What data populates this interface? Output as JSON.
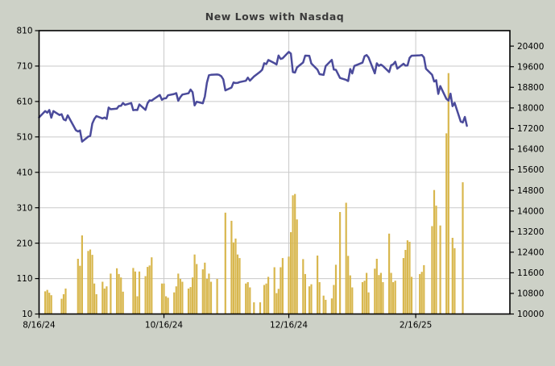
{
  "title": "New Lows with Nasdaq",
  "colors": {
    "background": "#CDD1C7",
    "plot_background": "#FFFFFF",
    "grid": "#C9C9C9",
    "frame": "#000000",
    "bar": "#D8B74E",
    "line": "#4B4B9B",
    "title_text": "#3B3B3B",
    "tick_text": "#000000"
  },
  "chart_data": {
    "type": "bar+line",
    "title": "New Lows with Nasdaq",
    "grid": true,
    "legend": "none",
    "x_axis": {
      "start_date": "2024-08-16",
      "days_total": 230,
      "ticks": [
        {
          "label": "8/16/24",
          "date": "2024-08-16"
        },
        {
          "label": "10/16/24",
          "date": "2024-10-16"
        },
        {
          "label": "12/16/24",
          "date": "2024-12-16"
        },
        {
          "label": "2/16/25",
          "date": "2025-02-16"
        }
      ]
    },
    "left_axis": {
      "series": "New Lows",
      "min": 10,
      "max": 810,
      "ticks": [
        10,
        110,
        210,
        310,
        410,
        510,
        610,
        710,
        810
      ]
    },
    "right_axis": {
      "series": "Nasdaq",
      "min": 10000,
      "max": 21000,
      "ticks": [
        10000,
        10800,
        11600,
        12400,
        13200,
        14000,
        14800,
        15600,
        16400,
        17200,
        18000,
        18800,
        19600,
        20400
      ]
    },
    "series": [
      {
        "name": "New Lows",
        "type": "bar",
        "axis": "left",
        "color": "#D8B74E",
        "points": [
          [
            "2024-08-19",
            74
          ],
          [
            "2024-08-20",
            78
          ],
          [
            "2024-08-21",
            70
          ],
          [
            "2024-08-22",
            63
          ],
          [
            "2024-08-27",
            53
          ],
          [
            "2024-08-28",
            66
          ],
          [
            "2024-08-29",
            82
          ],
          [
            "2024-09-04",
            166
          ],
          [
            "2024-09-05",
            146
          ],
          [
            "2024-09-06",
            232
          ],
          [
            "2024-09-09",
            188
          ],
          [
            "2024-09-10",
            192
          ],
          [
            "2024-09-11",
            177
          ],
          [
            "2024-09-12",
            96
          ],
          [
            "2024-09-13",
            66
          ],
          [
            "2024-09-16",
            101
          ],
          [
            "2024-09-17",
            82
          ],
          [
            "2024-09-18",
            88
          ],
          [
            "2024-09-20",
            124
          ],
          [
            "2024-09-23",
            139
          ],
          [
            "2024-09-24",
            123
          ],
          [
            "2024-09-25",
            113
          ],
          [
            "2024-09-26",
            73
          ],
          [
            "2024-10-01",
            140
          ],
          [
            "2024-10-02",
            130
          ],
          [
            "2024-10-03",
            60
          ],
          [
            "2024-10-04",
            130
          ],
          [
            "2024-10-07",
            117
          ],
          [
            "2024-10-08",
            143
          ],
          [
            "2024-10-09",
            147
          ],
          [
            "2024-10-10",
            170
          ],
          [
            "2024-10-15",
            96
          ],
          [
            "2024-10-16",
            96
          ],
          [
            "2024-10-17",
            60
          ],
          [
            "2024-10-18",
            56
          ],
          [
            "2024-10-21",
            71
          ],
          [
            "2024-10-22",
            88
          ],
          [
            "2024-10-23",
            124
          ],
          [
            "2024-10-24",
            109
          ],
          [
            "2024-10-25",
            101
          ],
          [
            "2024-10-28",
            82
          ],
          [
            "2024-10-29",
            86
          ],
          [
            "2024-10-30",
            113
          ],
          [
            "2024-10-31",
            178
          ],
          [
            "2024-11-01",
            151
          ],
          [
            "2024-11-04",
            136
          ],
          [
            "2024-11-05",
            155
          ],
          [
            "2024-11-06",
            109
          ],
          [
            "2024-11-07",
            124
          ],
          [
            "2024-11-08",
            101
          ],
          [
            "2024-11-11",
            109
          ],
          [
            "2024-11-15",
            296
          ],
          [
            "2024-11-18",
            273
          ],
          [
            "2024-11-19",
            212
          ],
          [
            "2024-11-20",
            223
          ],
          [
            "2024-11-21",
            178
          ],
          [
            "2024-11-22",
            168
          ],
          [
            "2024-11-25",
            96
          ],
          [
            "2024-11-26",
            100
          ],
          [
            "2024-11-27",
            85
          ],
          [
            "2024-11-29",
            43
          ],
          [
            "2024-12-02",
            43
          ],
          [
            "2024-12-04",
            92
          ],
          [
            "2024-12-05",
            96
          ],
          [
            "2024-12-06",
            115
          ],
          [
            "2024-12-09",
            142
          ],
          [
            "2024-12-10",
            69
          ],
          [
            "2024-12-11",
            81
          ],
          [
            "2024-12-12",
            142
          ],
          [
            "2024-12-13",
            168
          ],
          [
            "2024-12-16",
            172
          ],
          [
            "2024-12-17",
            241
          ],
          [
            "2024-12-18",
            345
          ],
          [
            "2024-12-19",
            349
          ],
          [
            "2024-12-20",
            277
          ],
          [
            "2024-12-23",
            165
          ],
          [
            "2024-12-24",
            123
          ],
          [
            "2024-12-26",
            88
          ],
          [
            "2024-12-27",
            94
          ],
          [
            "2024-12-30",
            175
          ],
          [
            "2024-12-31",
            100
          ],
          [
            "2025-01-02",
            62
          ],
          [
            "2025-01-03",
            50
          ],
          [
            "2025-01-06",
            54
          ],
          [
            "2025-01-07",
            92
          ],
          [
            "2025-01-08",
            149
          ],
          [
            "2025-01-10",
            298
          ],
          [
            "2025-01-13",
            324
          ],
          [
            "2025-01-14",
            174
          ],
          [
            "2025-01-15",
            119
          ],
          [
            "2025-01-16",
            85
          ],
          [
            "2025-01-21",
            100
          ],
          [
            "2025-01-22",
            104
          ],
          [
            "2025-01-23",
            126
          ],
          [
            "2025-01-24",
            71
          ],
          [
            "2025-01-27",
            138
          ],
          [
            "2025-01-28",
            166
          ],
          [
            "2025-01-29",
            120
          ],
          [
            "2025-01-30",
            126
          ],
          [
            "2025-01-31",
            100
          ],
          [
            "2025-02-03",
            237
          ],
          [
            "2025-02-04",
            126
          ],
          [
            "2025-02-05",
            100
          ],
          [
            "2025-02-06",
            104
          ],
          [
            "2025-02-10",
            168
          ],
          [
            "2025-02-11",
            191
          ],
          [
            "2025-02-12",
            218
          ],
          [
            "2025-02-13",
            214
          ],
          [
            "2025-02-14",
            115
          ],
          [
            "2025-02-18",
            123
          ],
          [
            "2025-02-19",
            129
          ],
          [
            "2025-02-20",
            148
          ],
          [
            "2025-02-24",
            258
          ],
          [
            "2025-02-25",
            360
          ],
          [
            "2025-02-26",
            316
          ],
          [
            "2025-02-28",
            260
          ],
          [
            "2025-03-03",
            520
          ],
          [
            "2025-03-04",
            690
          ],
          [
            "2025-03-06",
            225
          ],
          [
            "2025-03-07",
            196
          ],
          [
            "2025-03-11",
            382
          ]
        ]
      },
      {
        "name": "Nasdaq Composite",
        "type": "line",
        "axis": "right",
        "color": "#4B4B9B",
        "points": [
          [
            "2024-08-16",
            17632
          ],
          [
            "2024-08-19",
            17876
          ],
          [
            "2024-08-20",
            17817
          ],
          [
            "2024-08-21",
            17919
          ],
          [
            "2024-08-22",
            17619
          ],
          [
            "2024-08-23",
            17877
          ],
          [
            "2024-08-26",
            17725
          ],
          [
            "2024-08-27",
            17754
          ],
          [
            "2024-08-28",
            17556
          ],
          [
            "2024-08-29",
            17516
          ],
          [
            "2024-08-30",
            17713
          ],
          [
            "2024-09-03",
            17136
          ],
          [
            "2024-09-04",
            17084
          ],
          [
            "2024-09-05",
            17127
          ],
          [
            "2024-09-06",
            16691
          ],
          [
            "2024-09-09",
            16884
          ],
          [
            "2024-09-10",
            16914
          ],
          [
            "2024-09-11",
            17395
          ],
          [
            "2024-09-12",
            17570
          ],
          [
            "2024-09-13",
            17684
          ],
          [
            "2024-09-16",
            17592
          ],
          [
            "2024-09-17",
            17628
          ],
          [
            "2024-09-18",
            17573
          ],
          [
            "2024-09-19",
            18014
          ],
          [
            "2024-09-20",
            17948
          ],
          [
            "2024-09-23",
            17974
          ],
          [
            "2024-09-24",
            18074
          ],
          [
            "2024-09-25",
            18082
          ],
          [
            "2024-09-26",
            18190
          ],
          [
            "2024-09-27",
            18119
          ],
          [
            "2024-09-30",
            18189
          ],
          [
            "2024-10-01",
            17910
          ],
          [
            "2024-10-02",
            17925
          ],
          [
            "2024-10-03",
            17918
          ],
          [
            "2024-10-04",
            18138
          ],
          [
            "2024-10-07",
            17924
          ],
          [
            "2024-10-08",
            18182
          ],
          [
            "2024-10-09",
            18292
          ],
          [
            "2024-10-10",
            18282
          ],
          [
            "2024-10-11",
            18343
          ],
          [
            "2024-10-14",
            18502
          ],
          [
            "2024-10-15",
            18316
          ],
          [
            "2024-10-16",
            18368
          ],
          [
            "2024-10-17",
            18374
          ],
          [
            "2024-10-18",
            18490
          ],
          [
            "2024-10-21",
            18540
          ],
          [
            "2024-10-22",
            18574
          ],
          [
            "2024-10-23",
            18277
          ],
          [
            "2024-10-24",
            18415
          ],
          [
            "2024-10-25",
            18519
          ],
          [
            "2024-10-28",
            18568
          ],
          [
            "2024-10-29",
            18713
          ],
          [
            "2024-10-30",
            18608
          ],
          [
            "2024-10-31",
            18095
          ],
          [
            "2024-11-01",
            18240
          ],
          [
            "2024-11-04",
            18180
          ],
          [
            "2024-11-05",
            18439
          ],
          [
            "2024-11-06",
            18983
          ],
          [
            "2024-11-07",
            19269
          ],
          [
            "2024-11-08",
            19286
          ],
          [
            "2024-11-11",
            19299
          ],
          [
            "2024-11-12",
            19281
          ],
          [
            "2024-11-13",
            19230
          ],
          [
            "2024-11-14",
            19108
          ],
          [
            "2024-11-15",
            18680
          ],
          [
            "2024-11-18",
            18791
          ],
          [
            "2024-11-19",
            18987
          ],
          [
            "2024-11-20",
            18966
          ],
          [
            "2024-11-21",
            18972
          ],
          [
            "2024-11-22",
            19003
          ],
          [
            "2024-11-25",
            19055
          ],
          [
            "2024-11-26",
            19175
          ],
          [
            "2024-11-27",
            19060
          ],
          [
            "2024-11-29",
            19218
          ],
          [
            "2024-12-02",
            19404
          ],
          [
            "2024-12-03",
            19481
          ],
          [
            "2024-12-04",
            19735
          ],
          [
            "2024-12-05",
            19700
          ],
          [
            "2024-12-06",
            19860
          ],
          [
            "2024-12-09",
            19737
          ],
          [
            "2024-12-10",
            19687
          ],
          [
            "2024-12-11",
            20034
          ],
          [
            "2024-12-12",
            19902
          ],
          [
            "2024-12-13",
            19927
          ],
          [
            "2024-12-16",
            20173
          ],
          [
            "2024-12-17",
            20109
          ],
          [
            "2024-12-18",
            19393
          ],
          [
            "2024-12-19",
            19372
          ],
          [
            "2024-12-20",
            19572
          ],
          [
            "2024-12-23",
            19765
          ],
          [
            "2024-12-24",
            20031
          ],
          [
            "2024-12-26",
            20020
          ],
          [
            "2024-12-27",
            19722
          ],
          [
            "2024-12-30",
            19486
          ],
          [
            "2024-12-31",
            19311
          ],
          [
            "2025-01-02",
            19281
          ],
          [
            "2025-01-03",
            19622
          ],
          [
            "2025-01-06",
            19865
          ],
          [
            "2025-01-07",
            19490
          ],
          [
            "2025-01-08",
            19478
          ],
          [
            "2025-01-10",
            19162
          ],
          [
            "2025-01-13",
            19088
          ],
          [
            "2025-01-14",
            19044
          ],
          [
            "2025-01-15",
            19511
          ],
          [
            "2025-01-16",
            19338
          ],
          [
            "2025-01-17",
            19630
          ],
          [
            "2025-01-21",
            19757
          ],
          [
            "2025-01-22",
            20009
          ],
          [
            "2025-01-23",
            20053
          ],
          [
            "2025-01-24",
            19954
          ],
          [
            "2025-01-27",
            19341
          ],
          [
            "2025-01-28",
            19733
          ],
          [
            "2025-01-29",
            19632
          ],
          [
            "2025-01-30",
            19681
          ],
          [
            "2025-01-31",
            19627
          ],
          [
            "2025-02-03",
            19391
          ],
          [
            "2025-02-04",
            19654
          ],
          [
            "2025-02-05",
            19692
          ],
          [
            "2025-02-06",
            19791
          ],
          [
            "2025-02-07",
            19523
          ],
          [
            "2025-02-10",
            19714
          ],
          [
            "2025-02-11",
            19643
          ],
          [
            "2025-02-12",
            19649
          ],
          [
            "2025-02-13",
            19945
          ],
          [
            "2025-02-14",
            20026
          ],
          [
            "2025-02-18",
            20041
          ],
          [
            "2025-02-19",
            20056
          ],
          [
            "2025-02-20",
            19962
          ],
          [
            "2025-02-21",
            19524
          ],
          [
            "2025-02-24",
            19286
          ],
          [
            "2025-02-25",
            19026
          ],
          [
            "2025-02-26",
            19075
          ],
          [
            "2025-02-27",
            18544
          ],
          [
            "2025-02-28",
            18847
          ],
          [
            "2025-03-03",
            18350
          ],
          [
            "2025-03-04",
            18285
          ],
          [
            "2025-03-05",
            18552
          ],
          [
            "2025-03-06",
            18069
          ],
          [
            "2025-03-07",
            18196
          ],
          [
            "2025-03-10",
            17468
          ],
          [
            "2025-03-11",
            17436
          ],
          [
            "2025-03-12",
            17648
          ],
          [
            "2025-03-13",
            17303
          ]
        ]
      }
    ]
  }
}
